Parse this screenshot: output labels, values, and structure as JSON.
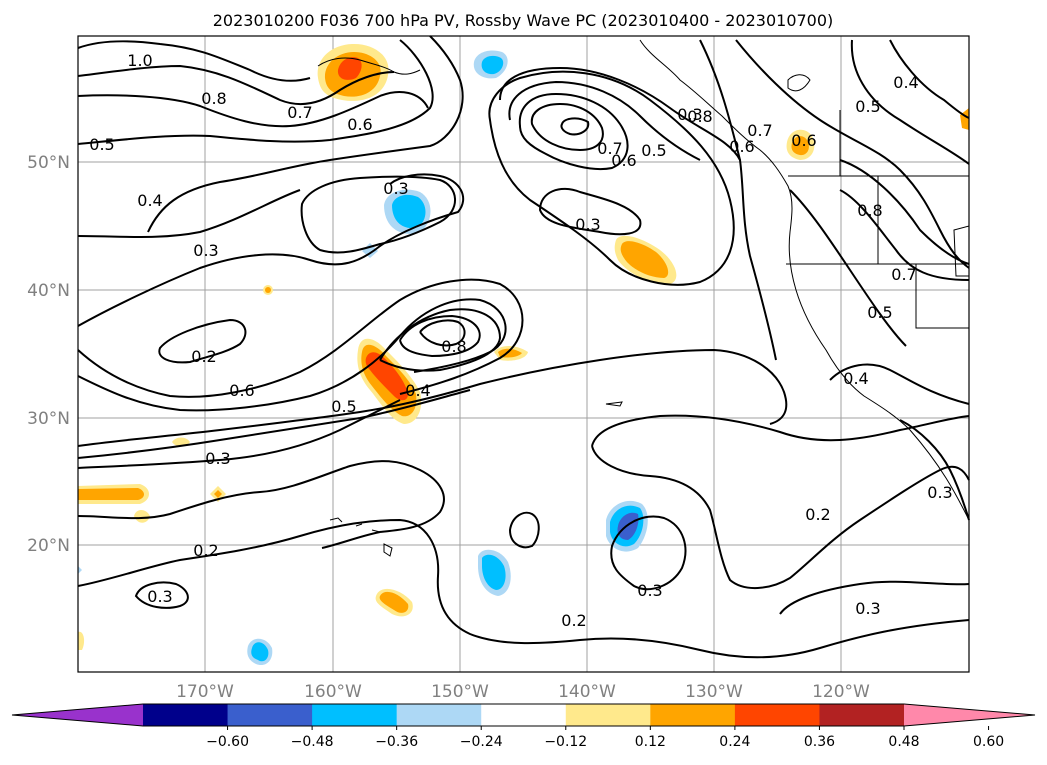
{
  "title": "2023010200 F036 700 hPa PV, Rossby Wave PC (2023010400 - 2023010700)",
  "lat_ticks": [
    "50°N",
    "40°N",
    "30°N",
    "20°N"
  ],
  "lon_ticks": [
    "170°W",
    "160°W",
    "150°W",
    "140°W",
    "130°W",
    "120°W"
  ],
  "colorbar": {
    "tick_labels": [
      "−0.60",
      "−0.48",
      "−0.36",
      "−0.24",
      "−0.12",
      "0.12",
      "0.24",
      "0.36",
      "0.48",
      "0.60"
    ],
    "colors": [
      "#9932cc",
      "#00008b",
      "#3a5fcd",
      "#00bfff",
      "#add8f5",
      "#ffffff",
      "#ffe98c",
      "#ffa500",
      "#ff4500",
      "#b22222",
      "#ff88aa"
    ]
  },
  "contour_labels": [
    "1.0",
    "0.8",
    "0.7",
    "0.6",
    "0.5",
    "0.4",
    "0.3",
    "0.3",
    "0.2",
    "0.6",
    "0.5",
    "0.3",
    "0.4",
    "0.8",
    "0.7",
    "0.6",
    "0.5",
    "0.3",
    "0.2",
    "0.3",
    "0.2",
    "0.3",
    "0.3",
    "0.2",
    "0.3",
    "0.6",
    "0.8",
    "0.7",
    "0.5",
    "0.4",
    "0.5",
    "0.4",
    "0.3",
    "0.6",
    "0.8",
    "0.7"
  ],
  "shading_colors": {
    "light_yellow": "#ffe98c",
    "orange": "#ffa500",
    "red_orange": "#ff4500",
    "light_blue": "#add8f5",
    "blue": "#00bfff",
    "medium_blue": "#3a5fcd"
  }
}
